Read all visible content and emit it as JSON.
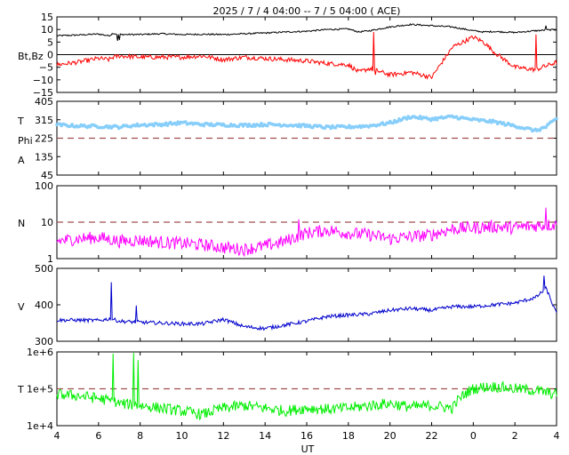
{
  "title": "2025 /  7 /  4   04:00 --  7 /  5   04:00 ( ACE)",
  "xlabel": "UT",
  "x_ticks": [
    "4",
    "6",
    "8",
    "10",
    "12",
    "14",
    "16",
    "18",
    "20",
    "22",
    "0",
    "2",
    "4"
  ],
  "colors": {
    "bt": "#000000",
    "bz": "#ff0000",
    "theta_phi": "#87cefa",
    "density": "#ff00ff",
    "velocity": "#0000cc",
    "temperature": "#00ee00",
    "reference": "#a05050"
  },
  "chart_data": [
    {
      "type": "line",
      "panel": "magnetic-field",
      "y_label_lines": [
        "Bt,Bz"
      ],
      "y_ticks": [
        "15",
        "10",
        "5",
        "0",
        "−5",
        "−10",
        "−15"
      ],
      "ylim": [
        -15,
        15
      ],
      "zero_line": 0,
      "x_hours": [
        0,
        1,
        2,
        2.5,
        2.7,
        3,
        4,
        5,
        6,
        7,
        8,
        9,
        10,
        11,
        12,
        13,
        14,
        14.5,
        15,
        16,
        17,
        18,
        19,
        20,
        20.5,
        21,
        22,
        23,
        24
      ],
      "series": [
        {
          "key": "bt",
          "values": [
            7.5,
            7.8,
            8.2,
            7.5,
            8.5,
            8.0,
            8.0,
            8.3,
            8.0,
            8.1,
            8.0,
            8.3,
            8.6,
            9.0,
            9.3,
            10.0,
            10.2,
            9.0,
            9.5,
            11.0,
            12.0,
            11.5,
            11.0,
            9.5,
            9.0,
            9.2,
            8.8,
            9.5,
            10.0
          ]
        },
        {
          "key": "bz",
          "values": [
            -4.0,
            -3.0,
            -1.5,
            -2.0,
            -1.0,
            -0.5,
            -1.0,
            -1.0,
            -1.0,
            -0.5,
            -2.0,
            -1.0,
            -1.5,
            -2.0,
            -2.5,
            -3.5,
            -4.0,
            -7.0,
            -5.5,
            -8.0,
            -7.0,
            -9.0,
            3.0,
            7.0,
            5.0,
            1.0,
            -5.0,
            -6.0,
            -3.0
          ]
        }
      ]
    },
    {
      "type": "scatter",
      "panel": "theta-phi",
      "y_label_lines": [
        "T",
        "Phi",
        "A"
      ],
      "y_ticks": [
        "405",
        "315",
        "225",
        "135",
        "45"
      ],
      "ylim": [
        45,
        405
      ],
      "reference_line": 225,
      "x_hours": [
        0,
        1,
        2,
        3,
        4,
        5,
        6,
        7,
        8,
        9,
        10,
        11,
        12,
        13,
        14,
        15,
        16,
        17,
        18,
        19,
        20,
        21,
        22,
        23,
        23.5,
        24
      ],
      "values": [
        290,
        285,
        283,
        280,
        290,
        292,
        300,
        292,
        290,
        288,
        292,
        290,
        285,
        278,
        280,
        285,
        300,
        330,
        318,
        330,
        315,
        305,
        285,
        262,
        280,
        320
      ]
    },
    {
      "type": "line",
      "panel": "density",
      "y_label_lines": [
        "N"
      ],
      "y_ticks": [
        "100",
        "10",
        "1"
      ],
      "y_scale": "log",
      "ylim": [
        1,
        100
      ],
      "reference_line": 10,
      "x_hours": [
        0,
        1,
        2,
        3,
        4,
        5,
        6,
        7,
        8,
        9,
        10,
        11,
        12,
        13,
        14,
        15,
        16,
        17,
        18,
        19,
        20,
        21,
        22,
        23,
        24
      ],
      "values": [
        3.0,
        3.5,
        3.8,
        3.0,
        3.2,
        2.8,
        2.6,
        2.4,
        2.0,
        1.8,
        2.2,
        3.0,
        5.0,
        6.0,
        5.0,
        4.5,
        3.5,
        4.0,
        4.5,
        6.5,
        7.0,
        7.5,
        7.0,
        8.0,
        8.5
      ]
    },
    {
      "type": "line",
      "panel": "velocity",
      "y_label_lines": [
        "V"
      ],
      "y_ticks": [
        "500",
        "400",
        "300"
      ],
      "ylim": [
        300,
        500
      ],
      "x_hours": [
        0,
        1,
        2,
        2.6,
        3,
        4,
        5,
        6,
        7,
        8,
        9,
        10,
        11,
        12,
        13,
        14,
        15,
        16,
        17,
        18,
        19,
        20,
        21,
        22,
        23,
        23.5,
        24
      ],
      "values": [
        358,
        358,
        357,
        362,
        355,
        352,
        350,
        348,
        348,
        360,
        340,
        335,
        345,
        355,
        368,
        372,
        375,
        385,
        390,
        385,
        395,
        395,
        400,
        405,
        420,
        445,
        375
      ]
    },
    {
      "type": "line",
      "panel": "temperature",
      "y_label_lines": [
        "T"
      ],
      "y_ticks": [
        "1e+6",
        "1e+5",
        "1e+4"
      ],
      "y_scale": "log",
      "ylim": [
        10000,
        1000000
      ],
      "reference_line": 100000,
      "x_hours": [
        0,
        1,
        2,
        3,
        4,
        5,
        6,
        7,
        8,
        9,
        10,
        11,
        12,
        13,
        14,
        15,
        16,
        17,
        18,
        19,
        20,
        20.5,
        21,
        22,
        23,
        24
      ],
      "values": [
        70000,
        65000,
        55000,
        40000,
        35000,
        30000,
        25000,
        20000,
        30000,
        35000,
        30000,
        25000,
        30000,
        28000,
        30000,
        35000,
        40000,
        32000,
        35000,
        30000,
        100000,
        110000,
        115000,
        100000,
        90000,
        70000
      ]
    }
  ]
}
